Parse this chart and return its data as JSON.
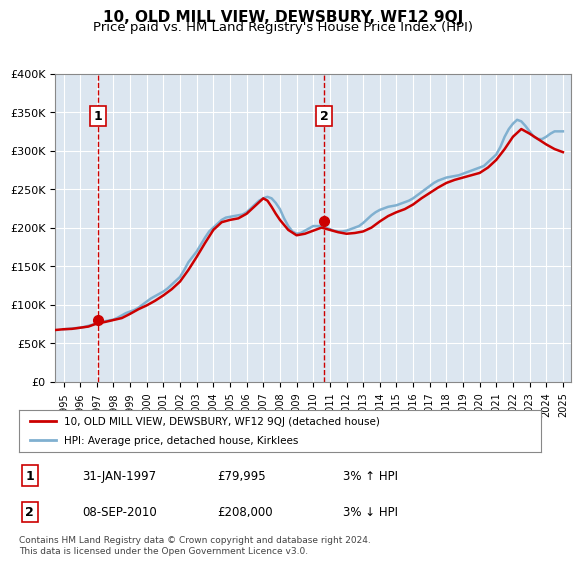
{
  "title": "10, OLD MILL VIEW, DEWSBURY, WF12 9QJ",
  "subtitle": "Price paid vs. HM Land Registry's House Price Index (HPI)",
  "title_fontsize": 11,
  "subtitle_fontsize": 9.5,
  "bg_color": "#dce6f0",
  "plot_bg_color": "#dce6f0",
  "fig_bg_color": "#ffffff",
  "grid_color": "#ffffff",
  "ylim": [
    0,
    400000
  ],
  "yticks": [
    0,
    50000,
    100000,
    150000,
    200000,
    250000,
    300000,
    350000,
    400000
  ],
  "ytick_labels": [
    "£0",
    "£50K",
    "£100K",
    "£150K",
    "£200K",
    "£250K",
    "£300K",
    "£350K",
    "£400K"
  ],
  "xlim_start": 1994.5,
  "xlim_end": 2025.5,
  "xticks": [
    1995,
    1996,
    1997,
    1998,
    1999,
    2000,
    2001,
    2002,
    2003,
    2004,
    2005,
    2006,
    2007,
    2008,
    2009,
    2010,
    2011,
    2012,
    2013,
    2014,
    2015,
    2016,
    2017,
    2018,
    2019,
    2020,
    2021,
    2022,
    2023,
    2024,
    2025
  ],
  "line_color_red": "#cc0000",
  "line_color_blue": "#80b0d0",
  "point1_x": 1997.08,
  "point1_y": 79995,
  "point2_x": 2010.67,
  "point2_y": 208000,
  "legend_label_red": "10, OLD MILL VIEW, DEWSBURY, WF12 9QJ (detached house)",
  "legend_label_blue": "HPI: Average price, detached house, Kirklees",
  "note1_num": "1",
  "note1_date": "31-JAN-1997",
  "note1_price": "£79,995",
  "note1_hpi": "3% ↑ HPI",
  "note2_num": "2",
  "note2_date": "08-SEP-2010",
  "note2_price": "£208,000",
  "note2_hpi": "3% ↓ HPI",
  "footer": "Contains HM Land Registry data © Crown copyright and database right 2024.\nThis data is licensed under the Open Government Licence v3.0.",
  "hpi_data_x": [
    1995,
    1995.25,
    1995.5,
    1995.75,
    1996,
    1996.25,
    1996.5,
    1996.75,
    1997,
    1997.25,
    1997.5,
    1997.75,
    1998,
    1998.25,
    1998.5,
    1998.75,
    1999,
    1999.25,
    1999.5,
    1999.75,
    2000,
    2000.25,
    2000.5,
    2000.75,
    2001,
    2001.25,
    2001.5,
    2001.75,
    2002,
    2002.25,
    2002.5,
    2002.75,
    2003,
    2003.25,
    2003.5,
    2003.75,
    2004,
    2004.25,
    2004.5,
    2004.75,
    2005,
    2005.25,
    2005.5,
    2005.75,
    2006,
    2006.25,
    2006.5,
    2006.75,
    2007,
    2007.25,
    2007.5,
    2007.75,
    2008,
    2008.25,
    2008.5,
    2008.75,
    2009,
    2009.25,
    2009.5,
    2009.75,
    2010,
    2010.25,
    2010.5,
    2010.75,
    2011,
    2011.25,
    2011.5,
    2011.75,
    2012,
    2012.25,
    2012.5,
    2012.75,
    2013,
    2013.25,
    2013.5,
    2013.75,
    2014,
    2014.25,
    2014.5,
    2014.75,
    2015,
    2015.25,
    2015.5,
    2015.75,
    2016,
    2016.25,
    2016.5,
    2016.75,
    2017,
    2017.25,
    2017.5,
    2017.75,
    2018,
    2018.25,
    2018.5,
    2018.75,
    2019,
    2019.25,
    2019.5,
    2019.75,
    2020,
    2020.25,
    2020.5,
    2020.75,
    2021,
    2021.25,
    2021.5,
    2021.75,
    2022,
    2022.25,
    2022.5,
    2022.75,
    2023,
    2023.25,
    2023.5,
    2023.75,
    2024,
    2024.25,
    2024.5,
    2024.75,
    2025
  ],
  "hpi_data_y": [
    68000,
    68500,
    69000,
    69500,
    70000,
    71000,
    72500,
    74000,
    75500,
    77000,
    78500,
    79500,
    80500,
    83000,
    86000,
    89000,
    91000,
    93000,
    96000,
    100000,
    104000,
    108000,
    111000,
    114000,
    117000,
    121000,
    126000,
    131000,
    136000,
    145000,
    155000,
    162000,
    169000,
    178000,
    187000,
    195000,
    200000,
    205000,
    210000,
    213000,
    214000,
    215000,
    216000,
    217000,
    220000,
    225000,
    230000,
    235000,
    238000,
    240000,
    238000,
    232000,
    224000,
    212000,
    202000,
    195000,
    192000,
    193000,
    196000,
    199000,
    202000,
    202000,
    202000,
    200000,
    198000,
    196000,
    195000,
    195000,
    196000,
    198000,
    200000,
    202000,
    206000,
    211000,
    216000,
    220000,
    223000,
    225000,
    227000,
    228000,
    229000,
    231000,
    233000,
    235000,
    238000,
    242000,
    246000,
    250000,
    254000,
    258000,
    261000,
    263000,
    265000,
    266000,
    267000,
    268000,
    270000,
    272000,
    274000,
    276000,
    278000,
    280000,
    285000,
    290000,
    295000,
    305000,
    318000,
    328000,
    335000,
    340000,
    338000,
    332000,
    325000,
    318000,
    315000,
    315000,
    318000,
    322000,
    325000,
    325000,
    325000
  ],
  "price_data_x": [
    1994.5,
    1995,
    1995.5,
    1996,
    1996.5,
    1997,
    1997.5,
    1998,
    1998.5,
    1999,
    1999.5,
    2000,
    2000.5,
    2001,
    2001.5,
    2002,
    2002.5,
    2003,
    2003.5,
    2004,
    2004.5,
    2005,
    2005.5,
    2006,
    2006.5,
    2007,
    2007.25,
    2007.5,
    2007.75,
    2008,
    2008.5,
    2009,
    2009.5,
    2010,
    2010.5,
    2011,
    2011.5,
    2012,
    2012.5,
    2013,
    2013.5,
    2014,
    2014.5,
    2015,
    2015.5,
    2016,
    2016.5,
    2017,
    2017.5,
    2018,
    2018.5,
    2019,
    2019.5,
    2020,
    2020.5,
    2021,
    2021.5,
    2022,
    2022.5,
    2023,
    2023.5,
    2024,
    2024.5,
    2025
  ],
  "price_data_y": [
    67000,
    68000,
    68500,
    70000,
    71500,
    75500,
    77500,
    80000,
    82500,
    88000,
    94000,
    99000,
    105000,
    112000,
    120000,
    130000,
    145000,
    162000,
    180000,
    197000,
    207000,
    210000,
    212000,
    218000,
    228000,
    238000,
    235000,
    227000,
    218000,
    210000,
    197000,
    190000,
    192000,
    196000,
    200000,
    197000,
    194000,
    192000,
    193000,
    195000,
    200000,
    208000,
    215000,
    220000,
    224000,
    230000,
    238000,
    245000,
    252000,
    258000,
    262000,
    265000,
    268000,
    271000,
    278000,
    288000,
    302000,
    318000,
    328000,
    322000,
    315000,
    308000,
    302000,
    298000
  ]
}
